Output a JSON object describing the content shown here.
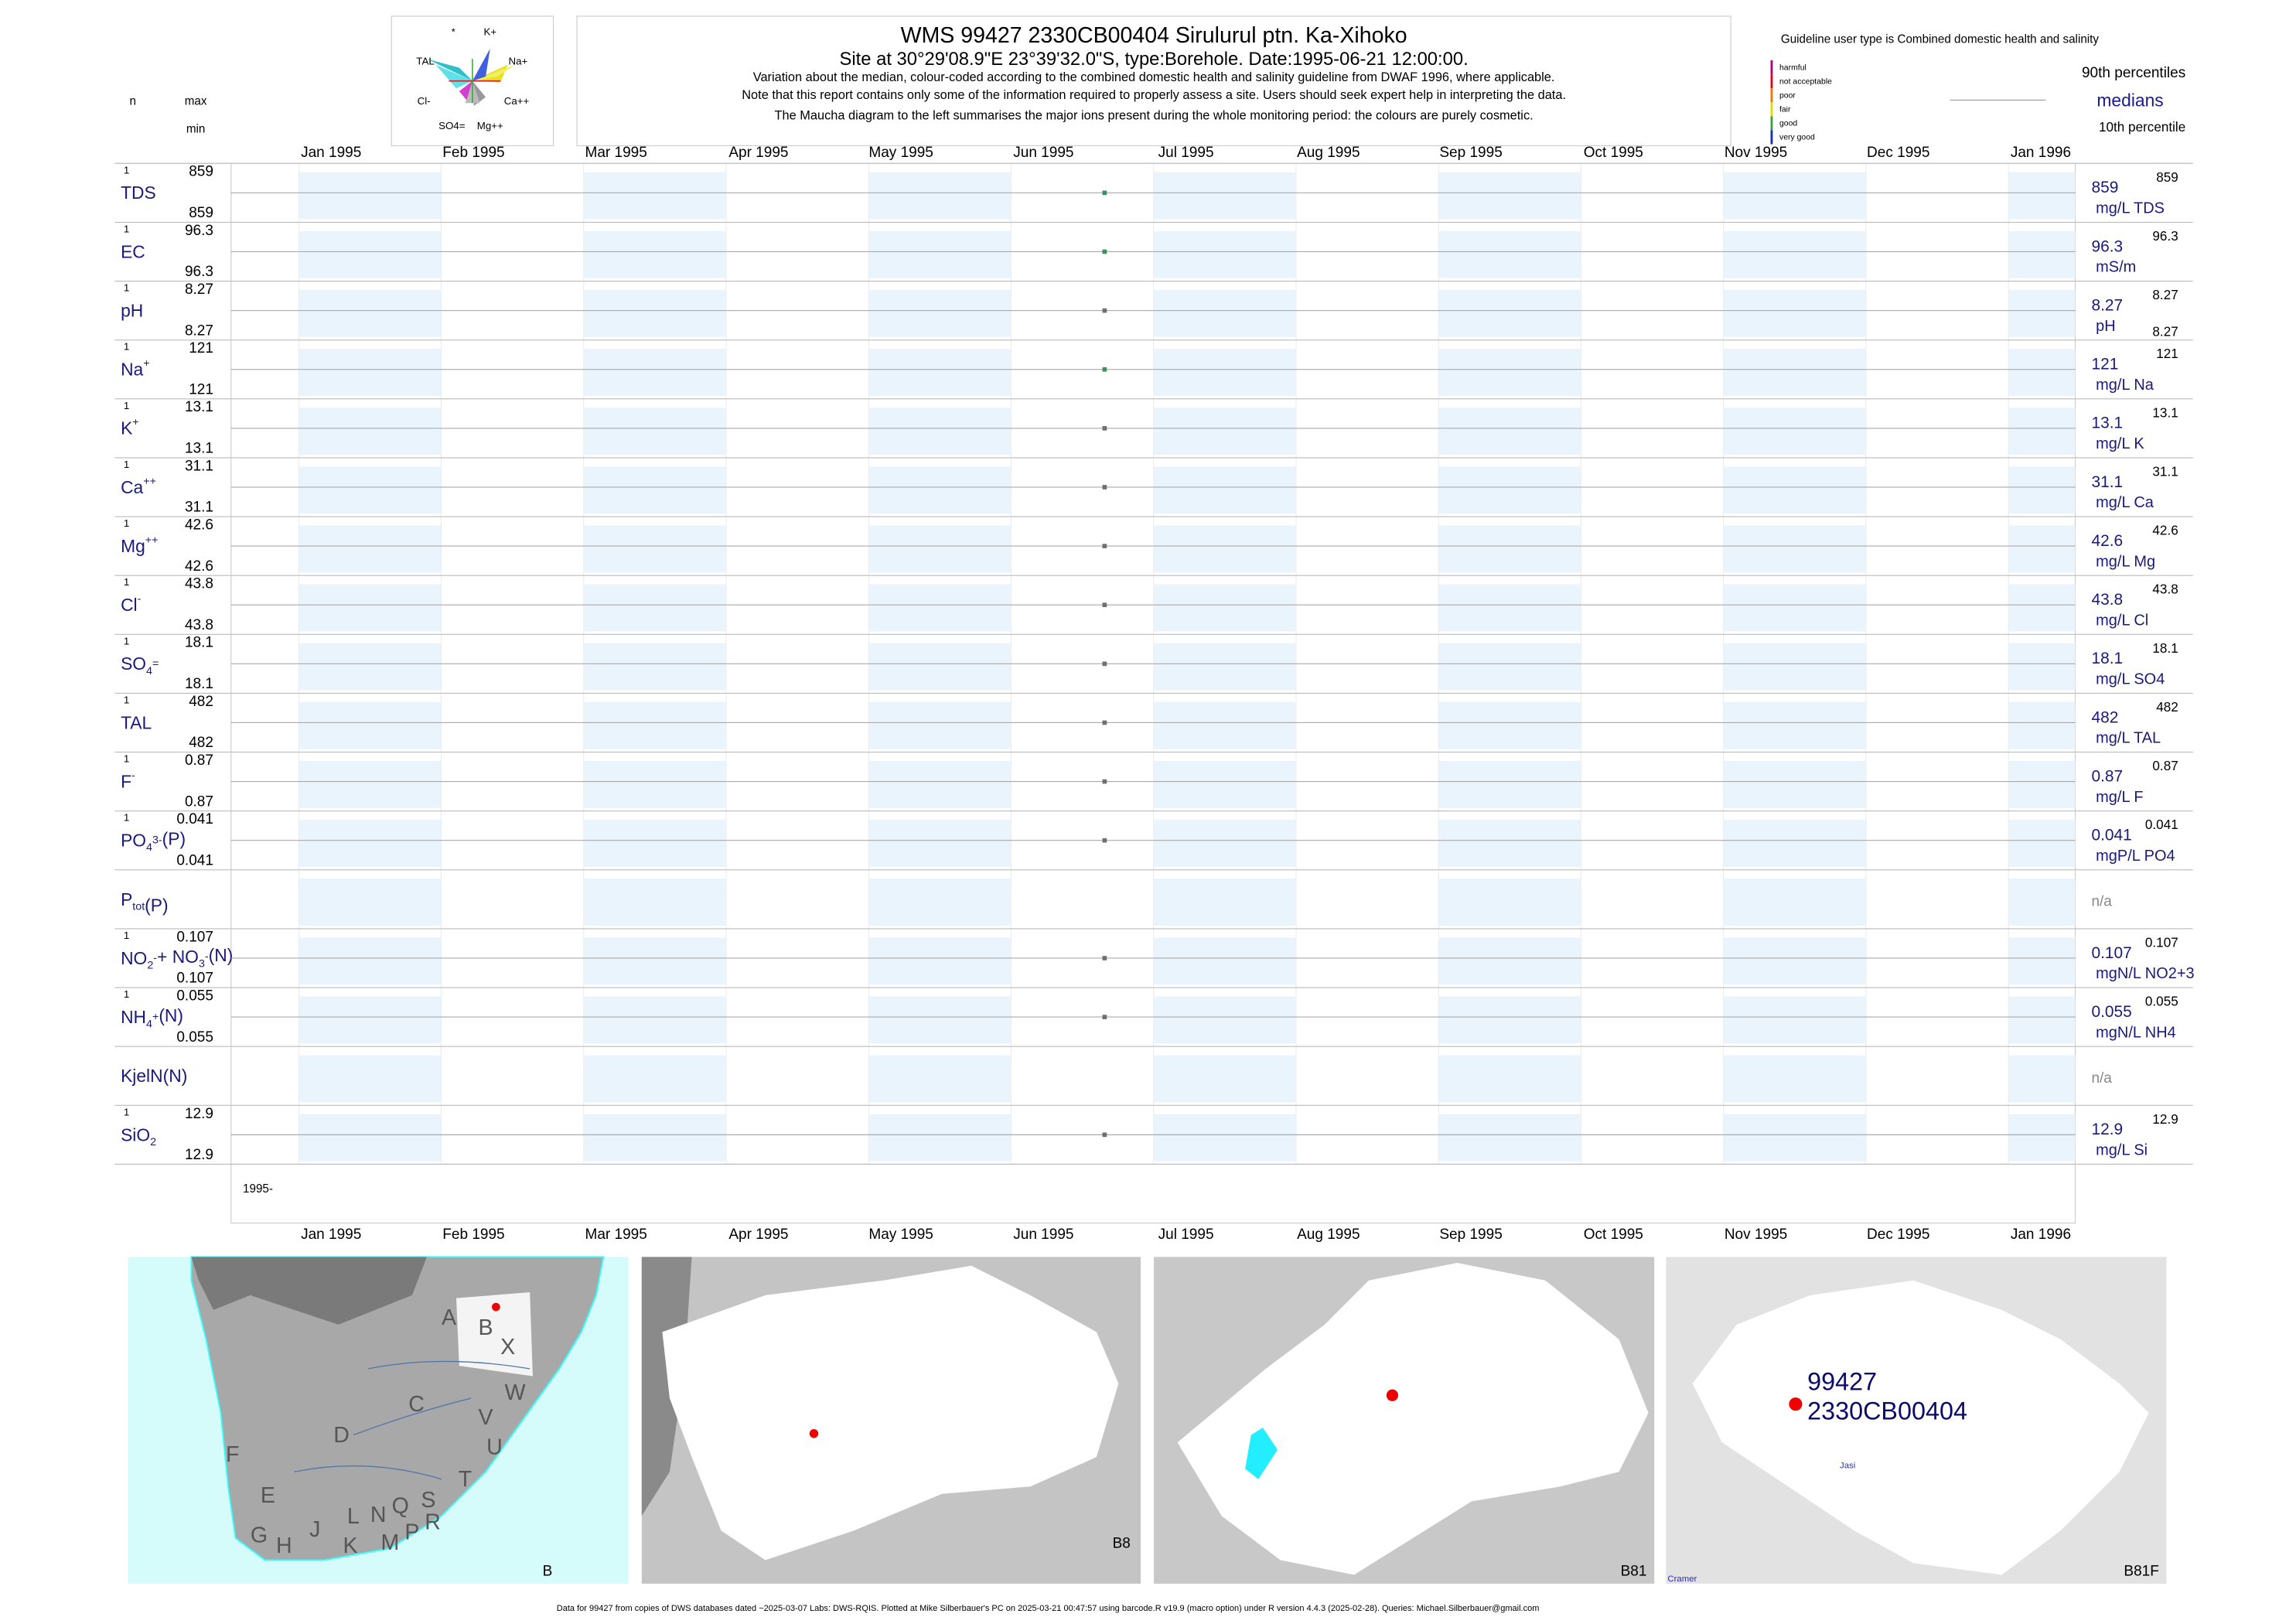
{
  "maucha": {
    "labels": [
      "*",
      "K+",
      "TAL",
      "Na+",
      "Cl-",
      "Ca++",
      "SO4=",
      "Mg++"
    ]
  },
  "header": {
    "title": "WMS 99427 2330CB00404 Sirulurul ptn. Ka-Xihoko",
    "site_line": [
      "Site at 30°29'08.9\"E 23°39'32.0\"S, type:Borehole. Date:",
      "1995-06-21 12:00:00",
      "."
    ],
    "notes": [
      "Variation about the median,  colour-coded according to the combined domestic health and salinity guideline from DWAF 1996, where applicable.",
      "Note that this report contains only some of the information required to properly assess a site. Users should seek expert help in interpreting the data.",
      "The Maucha diagram to the left summarises the major ions present during the whole monitoring period: the colours are purely cosmetic."
    ]
  },
  "legend": {
    "guideline": "Guideline user type is Combined domestic health and salinity",
    "classes": [
      {
        "name": "harmful",
        "color": "#b0007a"
      },
      {
        "name": "not acceptable",
        "color": "#e8001c"
      },
      {
        "name": "poor",
        "color": "#f07800"
      },
      {
        "name": "fair",
        "color": "#e8d800"
      },
      {
        "name": "good",
        "color": "#3aa03a"
      },
      {
        "name": "very good",
        "color": "#1a2fb0"
      }
    ],
    "p90": "90th percentiles",
    "medians": "medians",
    "p10": "10th percentile"
  },
  "columns": {
    "n": "n",
    "max": "max",
    "min": "min"
  },
  "months": [
    "Jan 1995",
    "Feb 1995",
    "Mar 1995",
    "Apr 1995",
    "May 1995",
    "Jun 1995",
    "Jul 1995",
    "Aug 1995",
    "Sep 1995",
    "Oct 1995",
    "Nov 1995",
    "Dec 1995",
    "Jan 1996"
  ],
  "year_label": "1995-",
  "rows": [
    {
      "label": [
        {
          "t": "TDS"
        }
      ],
      "n": 1,
      "max": 859,
      "min": 859,
      "median": 859,
      "unit": "mg/L TDS",
      "color": "#3d8f5f"
    },
    {
      "label": [
        {
          "t": "EC"
        }
      ],
      "n": 1,
      "max": 96.3,
      "min": 96.3,
      "median": 96.3,
      "unit": "mS/m",
      "color": "#3d8f5f"
    },
    {
      "label": [
        {
          "t": "pH"
        }
      ],
      "n": 1,
      "max": 8.27,
      "min": 8.27,
      "median": 8.27,
      "unit": "pH",
      "color": "#707070",
      "right_min": true
    },
    {
      "label": [
        {
          "t": "Na"
        },
        {
          "sup": "+"
        }
      ],
      "n": 1,
      "max": 121,
      "min": 121,
      "median": 121,
      "unit": "mg/L Na",
      "color": "#3d8f5f"
    },
    {
      "label": [
        {
          "t": "K"
        },
        {
          "sup": "+"
        }
      ],
      "n": 1,
      "max": 13.1,
      "min": 13.1,
      "median": 13.1,
      "unit": "mg/L K",
      "color": "#707070"
    },
    {
      "label": [
        {
          "t": "Ca"
        },
        {
          "sup": "++"
        }
      ],
      "n": 1,
      "max": 31.1,
      "min": 31.1,
      "median": 31.1,
      "unit": "mg/L Ca",
      "color": "#707070"
    },
    {
      "label": [
        {
          "t": "Mg"
        },
        {
          "sup": "++"
        }
      ],
      "n": 1,
      "max": 42.6,
      "min": 42.6,
      "median": 42.6,
      "unit": "mg/L Mg",
      "color": "#707070"
    },
    {
      "label": [
        {
          "t": "Cl"
        },
        {
          "sup": "-"
        }
      ],
      "n": 1,
      "max": 43.8,
      "min": 43.8,
      "median": 43.8,
      "unit": "mg/L Cl",
      "color": "#707070"
    },
    {
      "label": [
        {
          "t": "SO"
        },
        {
          "sub": "4"
        },
        {
          "sup": "="
        }
      ],
      "n": 1,
      "max": 18.1,
      "min": 18.1,
      "median": 18.1,
      "unit": "mg/L SO4",
      "color": "#707070"
    },
    {
      "label": [
        {
          "t": "TAL"
        }
      ],
      "n": 1,
      "max": 482,
      "min": 482,
      "median": 482,
      "unit": "mg/L TAL",
      "color": "#707070"
    },
    {
      "label": [
        {
          "t": "F"
        },
        {
          "sup": "-"
        }
      ],
      "n": 1,
      "max": 0.87,
      "min": 0.87,
      "median": 0.87,
      "unit": "mg/L F",
      "color": "#707070"
    },
    {
      "label": [
        {
          "t": "PO"
        },
        {
          "sub": "4"
        },
        {
          "sup": "3-"
        },
        {
          "t": "(P)"
        }
      ],
      "n": 1,
      "max": 0.041,
      "min": 0.041,
      "median": 0.041,
      "unit": "mgP/L PO4",
      "color": "#707070"
    },
    {
      "label": [
        {
          "t": "P"
        },
        {
          "sub": "tot"
        },
        {
          "t": "(P)"
        }
      ],
      "status": "n/a"
    },
    {
      "label": [
        {
          "t": "NO"
        },
        {
          "sub": "2"
        },
        {
          "sup": "-"
        },
        {
          "t": "+ NO"
        },
        {
          "sub": "3"
        },
        {
          "sup": "-"
        },
        {
          "t": "(N)"
        }
      ],
      "n": 1,
      "max": 0.107,
      "min": 0.107,
      "median": 0.107,
      "unit": "mgN/L NO2+3",
      "color": "#707070"
    },
    {
      "label": [
        {
          "t": "NH"
        },
        {
          "sub": "4"
        },
        {
          "sup": "+"
        },
        {
          "t": "(N)"
        }
      ],
      "n": 1,
      "max": 0.055,
      "min": 0.055,
      "median": 0.055,
      "unit": "mgN/L NH4",
      "color": "#707070"
    },
    {
      "label": [
        {
          "t": "KjelN(N)"
        }
      ],
      "status": "n/a"
    },
    {
      "label": [
        {
          "t": "SiO"
        },
        {
          "sub": "2"
        }
      ],
      "n": 1,
      "max": 12.9,
      "min": 12.9,
      "median": 12.9,
      "unit": "mg/L Si",
      "color": "#707070"
    }
  ],
  "maps": [
    {
      "name": "B",
      "letters": [
        "A",
        "B",
        "X",
        "W",
        "C",
        "V",
        "U",
        "D",
        "F",
        "E",
        "T",
        "S",
        "R",
        "Q",
        "N",
        "L",
        "M",
        "P",
        "K",
        "J",
        "H",
        "G"
      ]
    },
    {
      "name": "B8"
    },
    {
      "name": "B81"
    },
    {
      "name": "B81F",
      "site_id": "99427",
      "site_code": "2330CB00404",
      "places": [
        "Jasi",
        "Cramer"
      ]
    }
  ],
  "footer": "Data for 99427 from copies of DWS databases dated ~2025-03-07 Labs: DWS-RQIS. Plotted at Mike Silberbauer's PC on 2025-03-21 00:47:57 using barcode.R v19.9 (macro option) under R version 4.4.3 (2025-02-28). Queries: Michael.Silberbauer@gmail.com"
}
